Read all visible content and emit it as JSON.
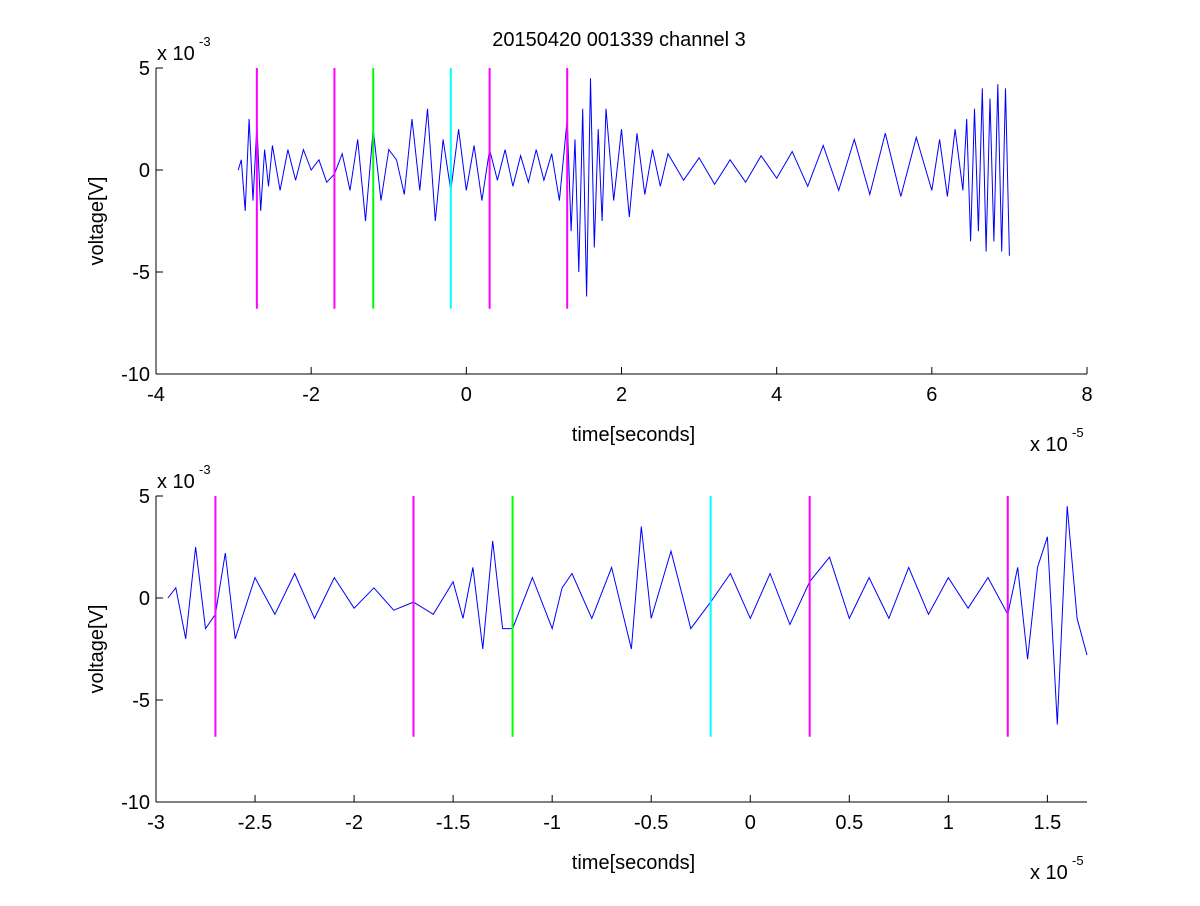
{
  "title": "20150420 001339 channel 3",
  "colors": {
    "signal": "#0000ff",
    "marker_magenta": "#ff00ff",
    "marker_green": "#00ff00",
    "marker_cyan": "#00ffff",
    "axis": "#000000",
    "background": "#ffffff"
  },
  "chart_data": [
    {
      "type": "line",
      "xlabel": "time[seconds]",
      "ylabel": "voltage[V]",
      "x_exponent_label": "x 10",
      "x_exponent": "-5",
      "y_exponent_label": "x 10",
      "y_exponent": "-3",
      "xlim": [
        -4,
        8
      ],
      "ylim": [
        -10,
        5
      ],
      "xticks": [
        -4,
        -2,
        0,
        2,
        4,
        6,
        8
      ],
      "xtick_labels": [
        "-4",
        "-2",
        "0",
        "2",
        "4",
        "6",
        "8"
      ],
      "yticks": [
        -10,
        -5,
        0,
        5
      ],
      "ytick_labels": [
        "-10",
        "-5",
        "0",
        "5"
      ],
      "grid": false,
      "series": [
        {
          "x": [
            -2.94,
            -2.9,
            -2.85,
            -2.8,
            -2.75,
            -2.7,
            -2.65,
            -2.6,
            -2.55,
            -2.5,
            -2.4,
            -2.3,
            -2.2,
            -2.1,
            -2.0,
            -1.9,
            -1.8,
            -1.7,
            -1.6,
            -1.5,
            -1.4,
            -1.3,
            -1.2,
            -1.1,
            -1.0,
            -0.9,
            -0.8,
            -0.7,
            -0.6,
            -0.5,
            -0.4,
            -0.3,
            -0.2,
            -0.1,
            0.0,
            0.1,
            0.2,
            0.3,
            0.4,
            0.5,
            0.6,
            0.7,
            0.8,
            0.9,
            1.0,
            1.1,
            1.2,
            1.3,
            1.35,
            1.4,
            1.45,
            1.5,
            1.55,
            1.6,
            1.65,
            1.7,
            1.75,
            1.8,
            1.9,
            2.0,
            2.1,
            2.2,
            2.3,
            2.4,
            2.5,
            2.6,
            2.8,
            3.0,
            3.2,
            3.4,
            3.6,
            3.8,
            4.0,
            4.2,
            4.4,
            4.6,
            4.8,
            5.0,
            5.2,
            5.4,
            5.6,
            5.8,
            6.0,
            6.1,
            6.2,
            6.3,
            6.4,
            6.45,
            6.5,
            6.55,
            6.6,
            6.65,
            6.7,
            6.75,
            6.8,
            6.85,
            6.9,
            6.95,
            7.0
          ],
          "y": [
            0.0,
            0.5,
            -2.0,
            2.5,
            -1.5,
            2.2,
            -2.0,
            1.0,
            -0.8,
            1.2,
            -1.0,
            1.0,
            -0.5,
            1.0,
            0.0,
            0.5,
            -0.6,
            -0.2,
            0.8,
            -1.0,
            1.5,
            -2.5,
            2.0,
            -1.5,
            1.0,
            0.5,
            -1.2,
            2.5,
            -1.0,
            3.0,
            -2.5,
            1.5,
            -1.0,
            2.0,
            -1.0,
            1.2,
            -1.5,
            1.0,
            -0.5,
            1.0,
            -0.8,
            0.7,
            -0.6,
            1.0,
            -0.5,
            0.8,
            -1.5,
            2.5,
            -3.0,
            1.5,
            -5.0,
            3.0,
            -6.2,
            4.5,
            -3.8,
            2.0,
            -2.5,
            3.0,
            -1.5,
            2.0,
            -2.3,
            1.8,
            -1.2,
            1.0,
            -0.8,
            0.8,
            -0.5,
            0.6,
            -0.7,
            0.5,
            -0.6,
            0.7,
            -0.4,
            0.9,
            -0.8,
            1.2,
            -1.0,
            1.5,
            -1.2,
            1.8,
            -1.3,
            1.6,
            -1.0,
            1.5,
            -1.3,
            2.0,
            -1.0,
            2.5,
            -3.5,
            3.0,
            -3.0,
            4.0,
            -4.0,
            3.5,
            -3.5,
            4.2,
            -4.0,
            4.0,
            -4.2
          ]
        }
      ],
      "markers": [
        {
          "x": -2.7,
          "color": "magenta"
        },
        {
          "x": -1.7,
          "color": "magenta"
        },
        {
          "x": -1.2,
          "color": "green"
        },
        {
          "x": -0.2,
          "color": "cyan"
        },
        {
          "x": 0.3,
          "color": "magenta"
        },
        {
          "x": 1.3,
          "color": "magenta"
        }
      ],
      "marker_range": [
        -6.8,
        5.0
      ]
    },
    {
      "type": "line",
      "xlabel": "time[seconds]",
      "ylabel": "voltage[V]",
      "x_exponent_label": "x 10",
      "x_exponent": "-5",
      "y_exponent_label": "x 10",
      "y_exponent": "-3",
      "xlim": [
        -3.0,
        1.7
      ],
      "ylim": [
        -10,
        5
      ],
      "xticks": [
        -3,
        -2.5,
        -2,
        -1.5,
        -1,
        -0.5,
        0,
        0.5,
        1,
        1.5
      ],
      "xtick_labels": [
        "-3",
        "-2.5",
        "-2",
        "-1.5",
        "-1",
        "-0.5",
        "0",
        "0.5",
        "1",
        "1.5"
      ],
      "yticks": [
        -10,
        -5,
        0,
        5
      ],
      "ytick_labels": [
        "-10",
        "-5",
        "0",
        "5"
      ],
      "grid": false,
      "series": [
        {
          "x": [
            -2.94,
            -2.9,
            -2.85,
            -2.8,
            -2.75,
            -2.7,
            -2.65,
            -2.6,
            -2.5,
            -2.4,
            -2.3,
            -2.2,
            -2.1,
            -2.0,
            -1.9,
            -1.8,
            -1.7,
            -1.6,
            -1.5,
            -1.45,
            -1.4,
            -1.35,
            -1.3,
            -1.25,
            -1.2,
            -1.1,
            -1.0,
            -0.95,
            -0.9,
            -0.8,
            -0.7,
            -0.6,
            -0.55,
            -0.5,
            -0.4,
            -0.3,
            -0.2,
            -0.1,
            0.0,
            0.1,
            0.2,
            0.3,
            0.4,
            0.5,
            0.6,
            0.7,
            0.8,
            0.9,
            1.0,
            1.1,
            1.2,
            1.3,
            1.35,
            1.4,
            1.45,
            1.5,
            1.55,
            1.6,
            1.65,
            1.7
          ],
          "y": [
            0.0,
            0.5,
            -2.0,
            2.5,
            -1.5,
            -0.8,
            2.2,
            -2.0,
            1.0,
            -0.8,
            1.2,
            -1.0,
            1.0,
            -0.5,
            0.5,
            -0.6,
            -0.2,
            -0.8,
            0.8,
            -1.0,
            1.5,
            -2.5,
            2.8,
            -1.5,
            -1.5,
            1.0,
            -1.5,
            0.5,
            1.2,
            -1.0,
            1.5,
            -2.5,
            3.5,
            -1.0,
            2.3,
            -1.5,
            -0.2,
            1.2,
            -1.0,
            1.2,
            -1.3,
            0.8,
            2.0,
            -1.0,
            1.0,
            -1.0,
            1.5,
            -0.8,
            1.0,
            -0.5,
            1.0,
            -0.8,
            1.5,
            -3.0,
            1.5,
            3.0,
            -6.2,
            4.5,
            -1.0,
            -2.8
          ]
        }
      ],
      "markers": [
        {
          "x": -2.7,
          "color": "magenta"
        },
        {
          "x": -1.7,
          "color": "magenta"
        },
        {
          "x": -1.2,
          "color": "green"
        },
        {
          "x": -0.2,
          "color": "cyan"
        },
        {
          "x": 0.3,
          "color": "magenta"
        },
        {
          "x": 1.3,
          "color": "magenta"
        }
      ],
      "marker_range": [
        -6.8,
        5.0
      ]
    }
  ]
}
